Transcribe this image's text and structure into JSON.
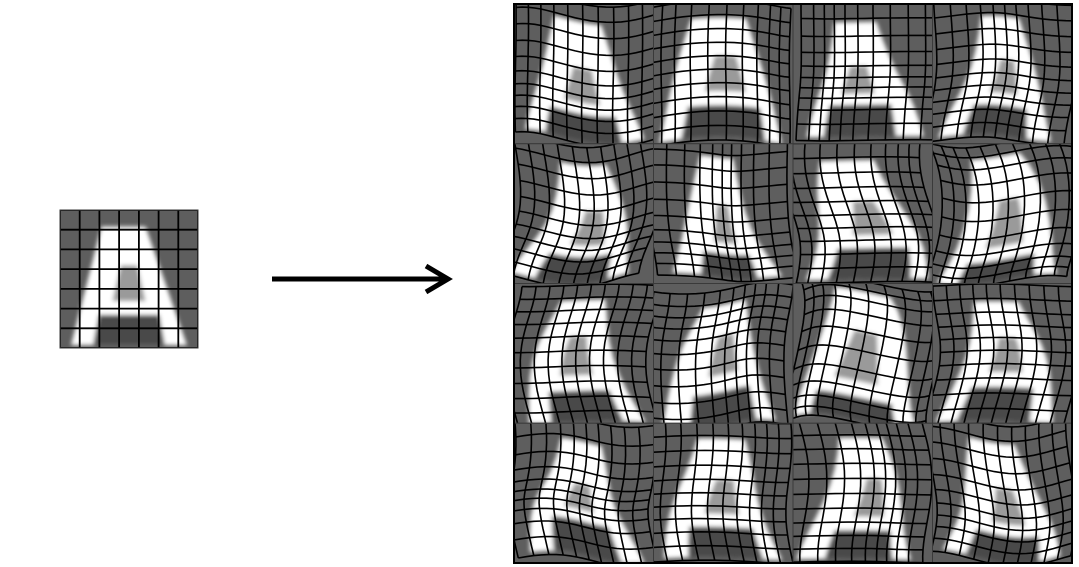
{
  "figure": {
    "source_label": "",
    "output_label": "",
    "glyph": "A",
    "colors": {
      "background": "#ffffff",
      "tile": "#5e5e5e",
      "glyph": "#ffffff",
      "grid": "#000000",
      "arrow": "#000000"
    },
    "source": {
      "grid_lines": 7
    },
    "output": {
      "rows": 4,
      "cols": 4,
      "grid_lines": 10,
      "seeds": [
        1,
        7,
        13,
        21,
        29,
        37,
        41,
        53,
        59,
        67,
        71,
        83,
        89,
        97,
        101,
        113
      ]
    }
  }
}
